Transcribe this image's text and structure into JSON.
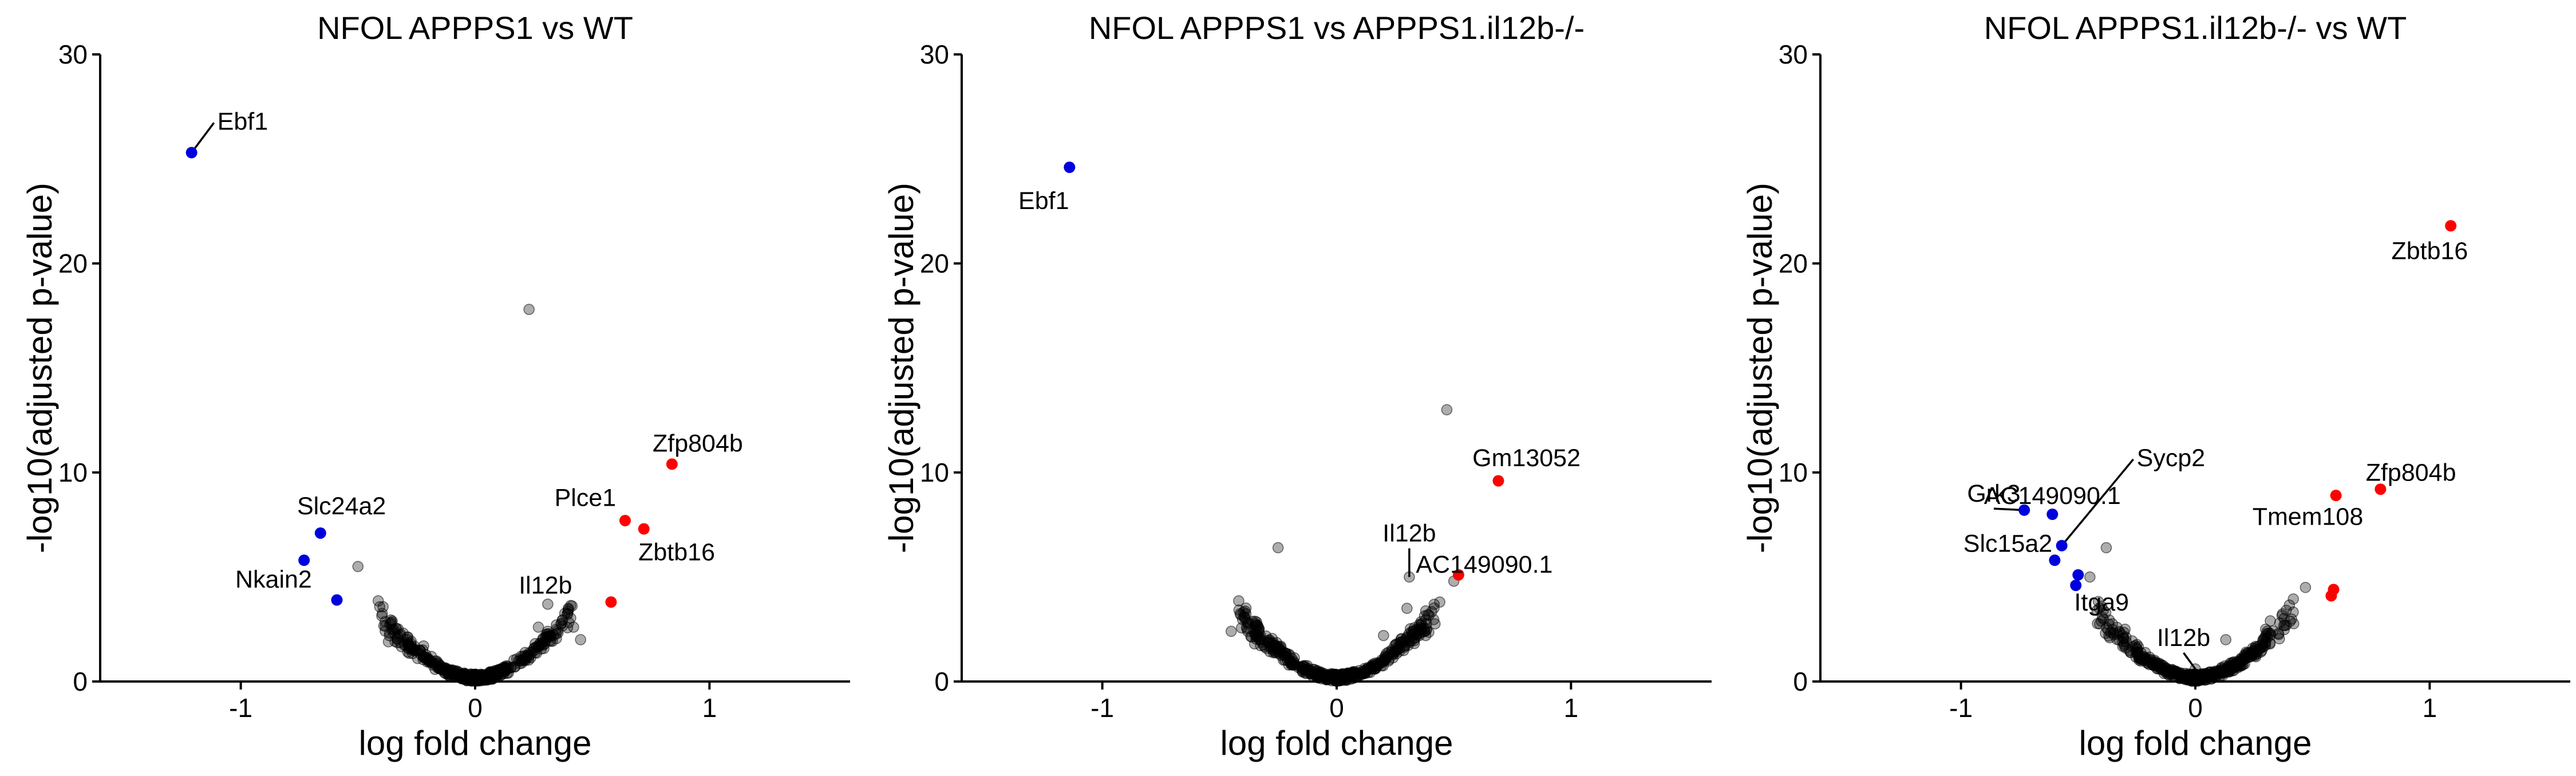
{
  "colors": {
    "up": "#ff0000",
    "down": "#0000dd",
    "ns": "#000000"
  },
  "chart_data": [
    {
      "type": "scatter",
      "title": "NFOL APPPS1 vs WT",
      "xlabel": "log fold change",
      "ylabel": "-log10(adjusted p-value)",
      "xlim": [
        -1.6,
        1.6
      ],
      "ylim": [
        0,
        30
      ],
      "xticks": [
        -1,
        0,
        1
      ],
      "yticks": [
        0,
        10,
        20,
        30
      ],
      "grid": false,
      "highlighted": [
        {
          "gene": "Ebf1",
          "x": -1.21,
          "y": 25.3,
          "dir": "down",
          "label": "Ebf1",
          "lx": -1.1,
          "ly": 26.4,
          "anchor": "start",
          "leader": true
        },
        {
          "gene": "Slc24a2",
          "x": -0.66,
          "y": 7.1,
          "dir": "down",
          "label": "Slc24a2",
          "lx": -0.57,
          "ly": 8.0,
          "anchor": "middle",
          "leader": false
        },
        {
          "gene": "Nkain2",
          "x": -0.73,
          "y": 5.8,
          "dir": "down",
          "label": "Nkain2",
          "lx": -0.86,
          "ly": 4.5,
          "anchor": "middle",
          "leader": false
        },
        {
          "gene": "",
          "x": -0.59,
          "y": 3.9,
          "dir": "down",
          "label": "",
          "lx": 0,
          "ly": 0,
          "anchor": "middle",
          "leader": false
        },
        {
          "gene": "Zfp804b",
          "x": 0.84,
          "y": 10.4,
          "dir": "up",
          "label": "Zfp804b",
          "lx": 0.95,
          "ly": 11.0,
          "anchor": "middle",
          "leader": false
        },
        {
          "gene": "Plce1",
          "x": 0.64,
          "y": 7.7,
          "dir": "up",
          "label": "Plce1",
          "lx": 0.47,
          "ly": 8.4,
          "anchor": "middle",
          "leader": false
        },
        {
          "gene": "Zbtb16",
          "x": 0.72,
          "y": 7.3,
          "dir": "up",
          "label": "Zbtb16",
          "lx": 0.86,
          "ly": 5.8,
          "anchor": "middle",
          "leader": false
        },
        {
          "gene": "",
          "x": 0.58,
          "y": 3.8,
          "dir": "up",
          "label": "",
          "lx": 0,
          "ly": 0,
          "anchor": "middle",
          "leader": false
        },
        {
          "gene": "Il12b",
          "x": 0.31,
          "y": 3.7,
          "dir": "ns",
          "label": "Il12b",
          "lx": 0.3,
          "ly": 4.2,
          "anchor": "middle",
          "leader": false
        }
      ],
      "ns_extra": [
        [
          0.23,
          17.8
        ],
        [
          -0.5,
          5.5
        ],
        [
          0.42,
          2.6
        ],
        [
          0.27,
          2.6
        ],
        [
          0.45,
          2.0
        ],
        [
          -0.37,
          1.9
        ],
        [
          -0.22,
          1.7
        ]
      ]
    },
    {
      "type": "scatter",
      "title": "NFOL APPPS1 vs APPPS1.il12b-/-",
      "xlabel": "log fold change",
      "ylabel": "-log10(adjusted p-value)",
      "xlim": [
        -1.6,
        1.6
      ],
      "ylim": [
        0,
        30
      ],
      "xticks": [
        -1,
        0,
        1
      ],
      "yticks": [
        0,
        10,
        20,
        30
      ],
      "grid": false,
      "highlighted": [
        {
          "gene": "Ebf1",
          "x": -1.14,
          "y": 24.6,
          "dir": "down",
          "label": "Ebf1",
          "lx": -1.25,
          "ly": 22.6,
          "anchor": "middle",
          "leader": false
        },
        {
          "gene": "Gm13052",
          "x": 0.69,
          "y": 9.6,
          "dir": "up",
          "label": "Gm13052",
          "lx": 0.81,
          "ly": 10.3,
          "anchor": "middle",
          "leader": false
        },
        {
          "gene": "AC149090.1",
          "x": 0.52,
          "y": 5.1,
          "dir": "up",
          "label": "AC149090.1",
          "lx": 0.63,
          "ly": 5.2,
          "anchor": "middle",
          "leader": false
        },
        {
          "gene": "Il12b",
          "x": 0.31,
          "y": 5.0,
          "dir": "ns",
          "label": "Il12b",
          "lx": 0.31,
          "ly": 6.7,
          "anchor": "middle",
          "leader": true
        }
      ],
      "ns_extra": [
        [
          0.47,
          13.0
        ],
        [
          -0.25,
          6.4
        ],
        [
          0.5,
          4.8
        ],
        [
          0.44,
          3.8
        ],
        [
          0.3,
          3.5
        ],
        [
          -0.45,
          2.4
        ],
        [
          -0.35,
          1.8
        ],
        [
          0.2,
          2.2
        ],
        [
          0.38,
          2.2
        ]
      ]
    },
    {
      "type": "scatter",
      "title": "NFOL APPPS1.il12b-/- vs WT",
      "xlabel": "log fold change",
      "ylabel": "-log10(adjusted p-value)",
      "xlim": [
        -1.6,
        1.6
      ],
      "ylim": [
        0,
        30
      ],
      "xticks": [
        -1,
        0,
        1
      ],
      "yticks": [
        0,
        10,
        20,
        30
      ],
      "grid": false,
      "highlighted": [
        {
          "gene": "Zbtb16",
          "x": 1.09,
          "y": 21.8,
          "dir": "up",
          "label": "Zbtb16",
          "lx": 1.0,
          "ly": 20.2,
          "anchor": "middle",
          "leader": false
        },
        {
          "gene": "Zfp804b",
          "x": 0.79,
          "y": 9.2,
          "dir": "up",
          "label": "Zfp804b",
          "lx": 0.92,
          "ly": 9.6,
          "anchor": "middle",
          "leader": false
        },
        {
          "gene": "Tmem108",
          "x": 0.6,
          "y": 8.9,
          "dir": "up",
          "label": "Tmem108",
          "lx": 0.48,
          "ly": 7.5,
          "anchor": "middle",
          "leader": false
        },
        {
          "gene": "",
          "x": 0.59,
          "y": 4.4,
          "dir": "up",
          "label": "",
          "lx": 0,
          "ly": 0,
          "anchor": "middle",
          "leader": false
        },
        {
          "gene": "",
          "x": 0.58,
          "y": 4.1,
          "dir": "up",
          "label": "",
          "lx": 0,
          "ly": 0,
          "anchor": "middle",
          "leader": false
        },
        {
          "gene": "Grk3",
          "x": -0.73,
          "y": 8.2,
          "dir": "down",
          "label": "Grk3",
          "lx": -0.86,
          "ly": 8.6,
          "anchor": "middle",
          "leader": true
        },
        {
          "gene": "AC149090.1",
          "x": -0.61,
          "y": 8.0,
          "dir": "down",
          "label": "AC149090.1",
          "lx": -0.61,
          "ly": 8.5,
          "anchor": "middle",
          "leader": false
        },
        {
          "gene": "Sycp2",
          "x": -0.57,
          "y": 6.5,
          "dir": "down",
          "label": "Sycp2",
          "lx": -0.25,
          "ly": 10.3,
          "anchor": "start",
          "leader": true
        },
        {
          "gene": "Slc15a2",
          "x": -0.6,
          "y": 5.8,
          "dir": "down",
          "label": "Slc15a2",
          "lx": -0.8,
          "ly": 6.2,
          "anchor": "middle",
          "leader": false
        },
        {
          "gene": "",
          "x": -0.5,
          "y": 5.1,
          "dir": "down",
          "label": "",
          "lx": 0,
          "ly": 0,
          "anchor": "middle",
          "leader": false
        },
        {
          "gene": "Itga9",
          "x": -0.51,
          "y": 4.6,
          "dir": "down",
          "label": "Itga9",
          "lx": -0.4,
          "ly": 3.4,
          "anchor": "middle",
          "leader": false
        },
        {
          "gene": "Il12b",
          "x": 0.0,
          "y": 0.6,
          "dir": "ns",
          "label": "Il12b",
          "lx": -0.05,
          "ly": 1.7,
          "anchor": "middle",
          "leader": true
        }
      ],
      "ns_extra": [
        [
          -0.38,
          6.4
        ],
        [
          -0.45,
          5.0
        ],
        [
          -0.4,
          3.6
        ],
        [
          0.47,
          4.5
        ],
        [
          0.3,
          2.5
        ],
        [
          0.13,
          2.0
        ],
        [
          -0.3,
          2.5
        ],
        [
          0.32,
          2.9
        ]
      ]
    }
  ]
}
